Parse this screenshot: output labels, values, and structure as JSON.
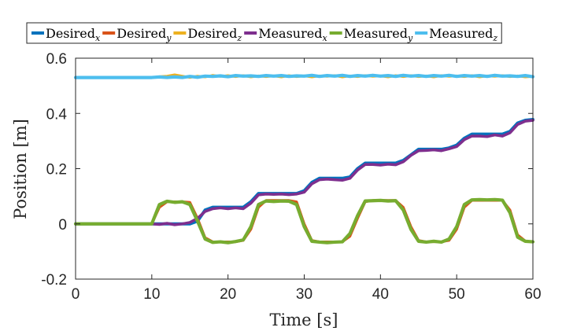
{
  "chart_data": {
    "type": "line",
    "title": "",
    "xlabel": "Time [s]",
    "ylabel": "Position [m]",
    "xlim": [
      0,
      60
    ],
    "ylim": [
      -0.2,
      0.6
    ],
    "xticks": [
      0,
      10,
      20,
      30,
      40,
      50,
      60
    ],
    "xtick_labels": [
      "0",
      "10",
      "20",
      "30",
      "40",
      "50",
      "60"
    ],
    "yticks": [
      -0.2,
      0,
      0.2,
      0.4,
      0.6
    ],
    "ytick_labels": [
      "-0.2",
      "0",
      "0.2",
      "0.4",
      "0.6"
    ],
    "grid": false,
    "legend_position": "top",
    "x": [
      0,
      5,
      10,
      11,
      12,
      13,
      14,
      15,
      16,
      17,
      18,
      19,
      20,
      21,
      22,
      23,
      24,
      25,
      26,
      27,
      28,
      29,
      30,
      31,
      32,
      33,
      34,
      35,
      36,
      37,
      38,
      39,
      40,
      41,
      42,
      43,
      44,
      45,
      46,
      47,
      48,
      49,
      50,
      51,
      52,
      53,
      54,
      55,
      56,
      57,
      58,
      59,
      60
    ],
    "series": [
      {
        "name": "Desired",
        "subscript": "x",
        "color": "#0072BD",
        "values": [
          0.0,
          0.0,
          0.0,
          0.0,
          0.0,
          0.0,
          0.0,
          0.0,
          0.01,
          0.05,
          0.06,
          0.06,
          0.06,
          0.06,
          0.06,
          0.08,
          0.11,
          0.11,
          0.11,
          0.11,
          0.11,
          0.11,
          0.12,
          0.15,
          0.165,
          0.165,
          0.165,
          0.165,
          0.17,
          0.2,
          0.22,
          0.22,
          0.22,
          0.22,
          0.22,
          0.23,
          0.25,
          0.27,
          0.27,
          0.27,
          0.27,
          0.275,
          0.285,
          0.31,
          0.325,
          0.325,
          0.325,
          0.325,
          0.325,
          0.335,
          0.365,
          0.375,
          0.378
        ]
      },
      {
        "name": "Desired",
        "subscript": "y",
        "color": "#D95319",
        "values": [
          0.0,
          0.0,
          0.0,
          0.06,
          0.08,
          0.08,
          0.08,
          0.078,
          0.02,
          -0.05,
          -0.065,
          -0.065,
          -0.065,
          -0.065,
          -0.06,
          -0.02,
          0.06,
          0.085,
          0.085,
          0.085,
          0.085,
          0.08,
          0.0,
          -0.06,
          -0.065,
          -0.065,
          -0.065,
          -0.065,
          -0.045,
          0.02,
          0.08,
          0.085,
          0.085,
          0.085,
          0.085,
          0.06,
          -0.01,
          -0.06,
          -0.065,
          -0.065,
          -0.065,
          -0.06,
          -0.02,
          0.06,
          0.085,
          0.085,
          0.085,
          0.085,
          0.085,
          0.05,
          -0.04,
          -0.062,
          -0.065
        ]
      },
      {
        "name": "Desired",
        "subscript": "z",
        "color": "#EDB120",
        "values": [
          0.53,
          0.53,
          0.53,
          0.533,
          0.535,
          0.54,
          0.535,
          0.53,
          0.535,
          0.532,
          0.538,
          0.534,
          0.537,
          0.533,
          0.537,
          0.532,
          0.536,
          0.533,
          0.536,
          0.532,
          0.537,
          0.533,
          0.536,
          0.532,
          0.536,
          0.534,
          0.537,
          0.532,
          0.536,
          0.533,
          0.537,
          0.534,
          0.536,
          0.532,
          0.537,
          0.533,
          0.537,
          0.533,
          0.536,
          0.532,
          0.537,
          0.534,
          0.536,
          0.533,
          0.537,
          0.532,
          0.536,
          0.534,
          0.537,
          0.533,
          0.536,
          0.532,
          0.534
        ]
      },
      {
        "name": "Measured",
        "subscript": "x",
        "color": "#7E2F8E",
        "values": [
          0.0,
          0.0,
          0.0,
          -0.002,
          0.002,
          -0.003,
          0.0,
          0.005,
          0.02,
          0.045,
          0.055,
          0.058,
          0.055,
          0.058,
          0.055,
          0.075,
          0.105,
          0.108,
          0.107,
          0.108,
          0.106,
          0.108,
          0.115,
          0.145,
          0.16,
          0.162,
          0.16,
          0.158,
          0.165,
          0.195,
          0.215,
          0.215,
          0.213,
          0.216,
          0.214,
          0.225,
          0.248,
          0.265,
          0.266,
          0.268,
          0.265,
          0.272,
          0.28,
          0.305,
          0.318,
          0.318,
          0.316,
          0.322,
          0.318,
          0.33,
          0.36,
          0.372,
          0.375
        ]
      },
      {
        "name": "Measured",
        "subscript": "y",
        "color": "#77AC30",
        "values": [
          0.0,
          0.0,
          0.0,
          0.07,
          0.082,
          0.078,
          0.08,
          0.07,
          0.01,
          -0.055,
          -0.067,
          -0.065,
          -0.068,
          -0.064,
          -0.058,
          -0.01,
          0.07,
          0.083,
          0.081,
          0.083,
          0.082,
          0.07,
          -0.01,
          -0.063,
          -0.066,
          -0.068,
          -0.066,
          -0.065,
          -0.035,
          0.03,
          0.083,
          0.084,
          0.085,
          0.083,
          0.084,
          0.05,
          -0.02,
          -0.063,
          -0.066,
          -0.063,
          -0.066,
          -0.055,
          -0.01,
          0.07,
          0.087,
          0.088,
          0.087,
          0.088,
          0.086,
          0.04,
          -0.048,
          -0.063,
          -0.065
        ]
      },
      {
        "name": "Measured",
        "subscript": "z",
        "color": "#4DBEEE",
        "values": [
          0.53,
          0.53,
          0.53,
          0.532,
          0.53,
          0.532,
          0.53,
          0.534,
          0.531,
          0.535,
          0.534,
          0.536,
          0.533,
          0.537,
          0.535,
          0.536,
          0.534,
          0.537,
          0.535,
          0.537,
          0.534,
          0.536,
          0.535,
          0.538,
          0.534,
          0.537,
          0.535,
          0.538,
          0.534,
          0.537,
          0.535,
          0.538,
          0.535,
          0.537,
          0.534,
          0.538,
          0.535,
          0.537,
          0.534,
          0.537,
          0.535,
          0.538,
          0.534,
          0.537,
          0.535,
          0.537,
          0.534,
          0.538,
          0.535,
          0.536,
          0.534,
          0.537,
          0.533
        ]
      }
    ]
  }
}
